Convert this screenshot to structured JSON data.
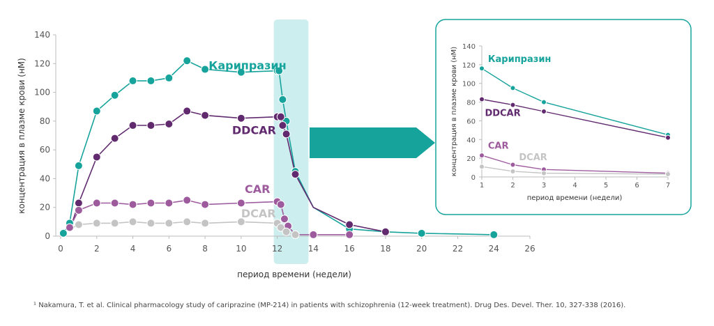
{
  "colors": {
    "cariprazine": "#16a39b",
    "ddcar": "#612a6f",
    "car": "#9d5b9e",
    "dcar": "#c4c4c4",
    "highlight": "#cdeeee",
    "arrow": "#16a39b",
    "inset_border": "#16a39b"
  },
  "chart_data": [
    {
      "id": "main",
      "type": "line",
      "title": "",
      "xlabel": "период времени (недели)",
      "ylabel": "концентрация в плазме крови (нМ)",
      "xlim": [
        0,
        26
      ],
      "ylim": [
        0,
        140
      ],
      "xticks": [
        0,
        2,
        4,
        6,
        8,
        10,
        12,
        14,
        16,
        18,
        20,
        22,
        24,
        26
      ],
      "yticks": [
        0,
        20,
        40,
        60,
        80,
        100,
        120,
        140
      ],
      "highlight_range": [
        12,
        14
      ],
      "series": [
        {
          "name": "Карипразин",
          "color_key": "cariprazine",
          "x": [
            0.15,
            0.5,
            1,
            2,
            3,
            4,
            5,
            6,
            7,
            8,
            10,
            12,
            12.1,
            12.3,
            12.5,
            13,
            14,
            16,
            18,
            20,
            24
          ],
          "y": [
            2,
            9,
            49,
            87,
            98,
            108,
            108,
            110,
            122,
            116,
            114,
            115,
            115,
            95,
            80,
            45,
            20,
            5,
            3,
            2,
            1
          ],
          "markers": [
            true,
            true,
            true,
            true,
            true,
            true,
            true,
            true,
            true,
            true,
            true,
            true,
            true,
            true,
            true,
            true,
            false,
            true,
            false,
            true,
            true
          ]
        },
        {
          "name": "DDCAR",
          "color_key": "ddcar",
          "x": [
            0.5,
            1,
            2,
            3,
            4,
            5,
            6,
            7,
            8,
            10,
            12,
            12.2,
            12.3,
            12.5,
            13,
            14,
            16,
            18
          ],
          "y": [
            4,
            23,
            55,
            68,
            77,
            77,
            78,
            87,
            84,
            82,
            83,
            83,
            77,
            71,
            43,
            20,
            8,
            3
          ],
          "markers": [
            false,
            true,
            true,
            true,
            true,
            true,
            true,
            true,
            true,
            true,
            true,
            true,
            true,
            true,
            true,
            false,
            true,
            true
          ]
        },
        {
          "name": "CAR",
          "color_key": "car",
          "x": [
            0.5,
            1,
            2,
            3,
            4,
            5,
            6,
            7,
            8,
            10,
            12,
            12.2,
            12.4,
            12.6,
            13,
            14,
            16
          ],
          "y": [
            6,
            18,
            23,
            23,
            22,
            23,
            23,
            25,
            22,
            23,
            24,
            22,
            12,
            7,
            1,
            1,
            1
          ],
          "markers": [
            true,
            true,
            true,
            true,
            true,
            true,
            true,
            true,
            true,
            true,
            true,
            true,
            true,
            true,
            true,
            true,
            true
          ]
        },
        {
          "name": "DCAR",
          "color_key": "dcar",
          "x": [
            0.5,
            1,
            2,
            3,
            4,
            5,
            6,
            7,
            8,
            10,
            12,
            12.2,
            12.5,
            13
          ],
          "y": [
            5,
            8,
            9,
            9,
            10,
            9,
            9,
            10,
            9,
            10,
            9,
            6,
            3,
            1
          ],
          "markers": [
            false,
            true,
            true,
            true,
            true,
            true,
            true,
            true,
            true,
            true,
            true,
            true,
            true,
            true
          ]
        }
      ],
      "labels": [
        {
          "text": "Карипразин",
          "color_key": "cariprazine",
          "at": [
            8.2,
            116
          ]
        },
        {
          "text": "DDCAR",
          "color_key": "ddcar",
          "at": [
            9.5,
            71
          ]
        },
        {
          "text": "CAR",
          "color_key": "car",
          "at": [
            10.2,
            30
          ]
        },
        {
          "text": "DCAR",
          "color_key": "dcar",
          "at": [
            10.0,
            13
          ]
        }
      ]
    },
    {
      "id": "inset",
      "type": "line",
      "title": "",
      "xlabel": "период времени (недели)",
      "ylabel": "концентрация в плазме крови (нМ)",
      "xlim": [
        1,
        7
      ],
      "ylim": [
        0,
        140
      ],
      "xticks": [
        1,
        2,
        3,
        4,
        5,
        6,
        7
      ],
      "yticks": [
        0,
        20,
        40,
        60,
        80,
        100,
        120,
        140
      ],
      "series": [
        {
          "name": "Карипразин",
          "color_key": "cariprazine",
          "x": [
            1,
            2,
            3,
            7
          ],
          "y": [
            116,
            95,
            80,
            45
          ]
        },
        {
          "name": "DDCAR",
          "color_key": "ddcar",
          "x": [
            1,
            2,
            3,
            7
          ],
          "y": [
            83,
            77,
            70,
            42
          ]
        },
        {
          "name": "CAR",
          "color_key": "car",
          "x": [
            1,
            2,
            3,
            7
          ],
          "y": [
            23,
            13,
            8,
            4
          ]
        },
        {
          "name": "DCAR",
          "color_key": "dcar",
          "x": [
            1,
            2,
            3,
            7
          ],
          "y": [
            11,
            6,
            4,
            3
          ]
        }
      ],
      "labels": [
        {
          "text": "Карипразин",
          "color_key": "cariprazine",
          "at": [
            1.2,
            123
          ]
        },
        {
          "text": "DDCAR",
          "color_key": "ddcar",
          "at": [
            1.1,
            65
          ]
        },
        {
          "text": "CAR",
          "color_key": "car",
          "at": [
            1.2,
            30
          ]
        },
        {
          "text": "DCAR",
          "color_key": "dcar",
          "at": [
            2.2,
            18
          ]
        }
      ]
    }
  ],
  "footnote": "¹ Nakamura, T. et al. Clinical pharmacology study of cariprazine (MP-214) in patients with schizophrenia (12-week treatment). Drug Des. Devel. Ther. 10, 327-338 (2016)."
}
